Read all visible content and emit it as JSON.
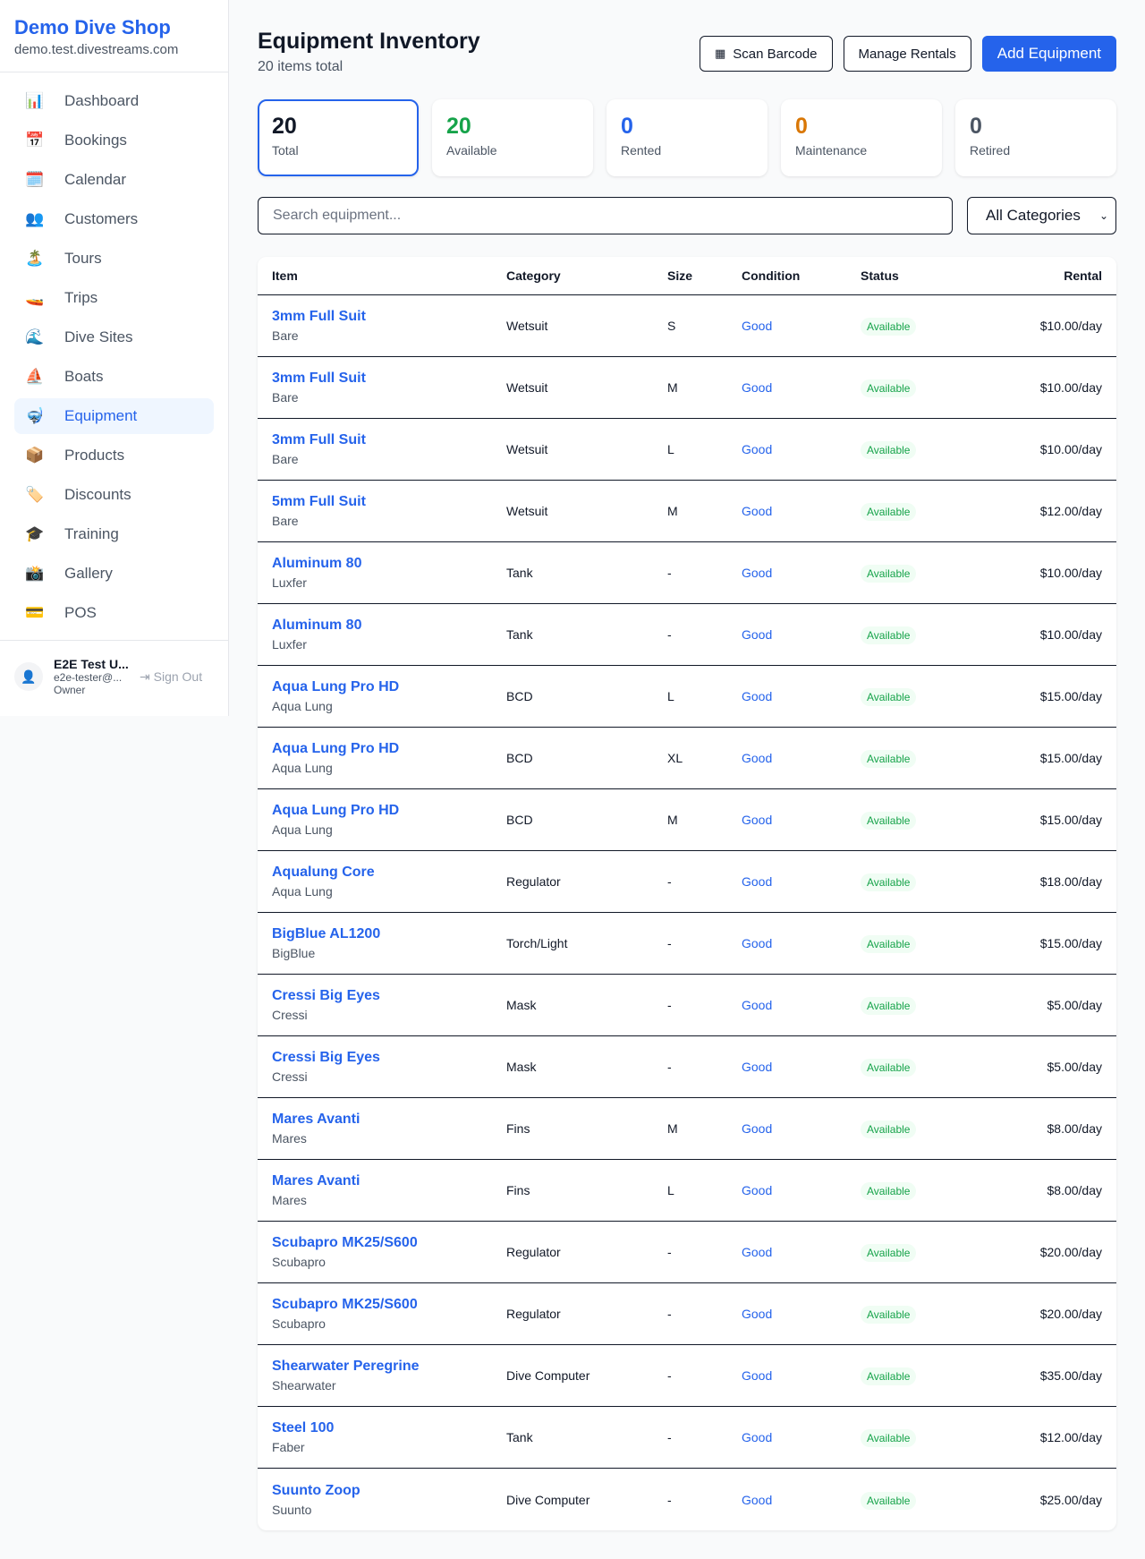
{
  "brand": {
    "name": "Demo Dive Shop",
    "domain": "demo.test.divestreams.com"
  },
  "nav": [
    {
      "icon": "📊",
      "label": "Dashboard"
    },
    {
      "icon": "📅",
      "label": "Bookings"
    },
    {
      "icon": "🗓️",
      "label": "Calendar"
    },
    {
      "icon": "👥",
      "label": "Customers"
    },
    {
      "icon": "🏝️",
      "label": "Tours"
    },
    {
      "icon": "🚤",
      "label": "Trips"
    },
    {
      "icon": "🌊",
      "label": "Dive Sites"
    },
    {
      "icon": "⛵",
      "label": "Boats"
    },
    {
      "icon": "🤿",
      "label": "Equipment",
      "active": true
    },
    {
      "icon": "📦",
      "label": "Products"
    },
    {
      "icon": "🏷️",
      "label": "Discounts"
    },
    {
      "icon": "🎓",
      "label": "Training"
    },
    {
      "icon": "📸",
      "label": "Gallery"
    },
    {
      "icon": "💳",
      "label": "POS"
    }
  ],
  "user": {
    "name": "E2E Test U...",
    "email": "e2e-tester@...",
    "role": "Owner",
    "sign_out": "Sign Out"
  },
  "header": {
    "title": "Equipment Inventory",
    "subtitle": "20 items total",
    "scan": "Scan Barcode",
    "manage": "Manage Rentals",
    "add": "Add Equipment"
  },
  "stats": [
    {
      "value": "20",
      "label": "Total",
      "color": "#111827"
    },
    {
      "value": "20",
      "label": "Available",
      "color": "#16a34a"
    },
    {
      "value": "0",
      "label": "Rented",
      "color": "#2563eb"
    },
    {
      "value": "0",
      "label": "Maintenance",
      "color": "#d97706"
    },
    {
      "value": "0",
      "label": "Retired",
      "color": "#4b5563"
    }
  ],
  "filters": {
    "search_placeholder": "Search equipment...",
    "category": "All Categories"
  },
  "table": {
    "headers": [
      "Item",
      "Category",
      "Size",
      "Condition",
      "Status",
      "Rental"
    ],
    "rows": [
      [
        "3mm Full Suit",
        "Bare",
        "Wetsuit",
        "S",
        "Good",
        "Available",
        "$10.00/day"
      ],
      [
        "3mm Full Suit",
        "Bare",
        "Wetsuit",
        "M",
        "Good",
        "Available",
        "$10.00/day"
      ],
      [
        "3mm Full Suit",
        "Bare",
        "Wetsuit",
        "L",
        "Good",
        "Available",
        "$10.00/day"
      ],
      [
        "5mm Full Suit",
        "Bare",
        "Wetsuit",
        "M",
        "Good",
        "Available",
        "$12.00/day"
      ],
      [
        "Aluminum 80",
        "Luxfer",
        "Tank",
        "-",
        "Good",
        "Available",
        "$10.00/day"
      ],
      [
        "Aluminum 80",
        "Luxfer",
        "Tank",
        "-",
        "Good",
        "Available",
        "$10.00/day"
      ],
      [
        "Aqua Lung Pro HD",
        "Aqua Lung",
        "BCD",
        "L",
        "Good",
        "Available",
        "$15.00/day"
      ],
      [
        "Aqua Lung Pro HD",
        "Aqua Lung",
        "BCD",
        "XL",
        "Good",
        "Available",
        "$15.00/day"
      ],
      [
        "Aqua Lung Pro HD",
        "Aqua Lung",
        "BCD",
        "M",
        "Good",
        "Available",
        "$15.00/day"
      ],
      [
        "Aqualung Core",
        "Aqua Lung",
        "Regulator",
        "-",
        "Good",
        "Available",
        "$18.00/day"
      ],
      [
        "BigBlue AL1200",
        "BigBlue",
        "Torch/Light",
        "-",
        "Good",
        "Available",
        "$15.00/day"
      ],
      [
        "Cressi Big Eyes",
        "Cressi",
        "Mask",
        "-",
        "Good",
        "Available",
        "$5.00/day"
      ],
      [
        "Cressi Big Eyes",
        "Cressi",
        "Mask",
        "-",
        "Good",
        "Available",
        "$5.00/day"
      ],
      [
        "Mares Avanti",
        "Mares",
        "Fins",
        "M",
        "Good",
        "Available",
        "$8.00/day"
      ],
      [
        "Mares Avanti",
        "Mares",
        "Fins",
        "L",
        "Good",
        "Available",
        "$8.00/day"
      ],
      [
        "Scubapro MK25/S600",
        "Scubapro",
        "Regulator",
        "-",
        "Good",
        "Available",
        "$20.00/day"
      ],
      [
        "Scubapro MK25/S600",
        "Scubapro",
        "Regulator",
        "-",
        "Good",
        "Available",
        "$20.00/day"
      ],
      [
        "Shearwater Peregrine",
        "Shearwater",
        "Dive Computer",
        "-",
        "Good",
        "Available",
        "$35.00/day"
      ],
      [
        "Steel 100",
        "Faber",
        "Tank",
        "-",
        "Good",
        "Available",
        "$12.00/day"
      ],
      [
        "Suunto Zoop",
        "Suunto",
        "Dive Computer",
        "-",
        "Good",
        "Available",
        "$25.00/day"
      ]
    ]
  }
}
